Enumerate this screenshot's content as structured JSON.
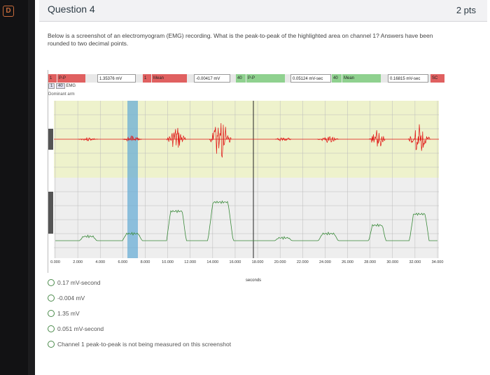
{
  "question": {
    "title": "Question 4",
    "points": "2 pts",
    "text": "Below is a screenshot of an electromyogram (EMG) recording. What is the peak-to-peak of the highlighted area on channel 1? Answers have been rounded to two decimal points."
  },
  "toolbar": {
    "ch1_btn": "1",
    "ch1_measure": "P-P",
    "ch1_value": "1.35376 mV",
    "ch2_btn": "1",
    "ch2_measure": "Mean",
    "ch2_value": "-0.00417 mV",
    "ch3_btn": "40",
    "ch3_measure": "P-P",
    "ch3_value": "0.05124 mV-sec",
    "ch4_btn": "40",
    "ch4_measure": "Mean",
    "ch4_value": "0.16815 mV-sec",
    "sc_label": "SC"
  },
  "channel_row": {
    "num": "1",
    "num2": "40",
    "label": "EMG"
  },
  "dominant_label": "Dominant arm",
  "x_axis": {
    "ticks": [
      "0.000",
      "2.000",
      "4.000",
      "6.000",
      "8.000",
      "10.000",
      "12.000",
      "14.000",
      "16.000",
      "18.000",
      "20.000",
      "22.000",
      "24.000",
      "26.000",
      "28.000",
      "30.000",
      "32.000",
      "34.000"
    ],
    "unit": "seconds"
  },
  "answers": [
    "0.17 mV-second",
    "-0.004 mV",
    "1.35 mV",
    "0.051 mV-second",
    "Channel 1 peak-to-peak is not being measured on this screenshot"
  ],
  "colors": {
    "upper_bg": "#eef2cc",
    "lower_bg": "#eeeeee",
    "highlight": "#6aaed6",
    "emg_red": "#e01010",
    "integrated": "#3a8a3a",
    "accent": "#c86c3c"
  },
  "icons": {
    "tab": "d-icon"
  }
}
